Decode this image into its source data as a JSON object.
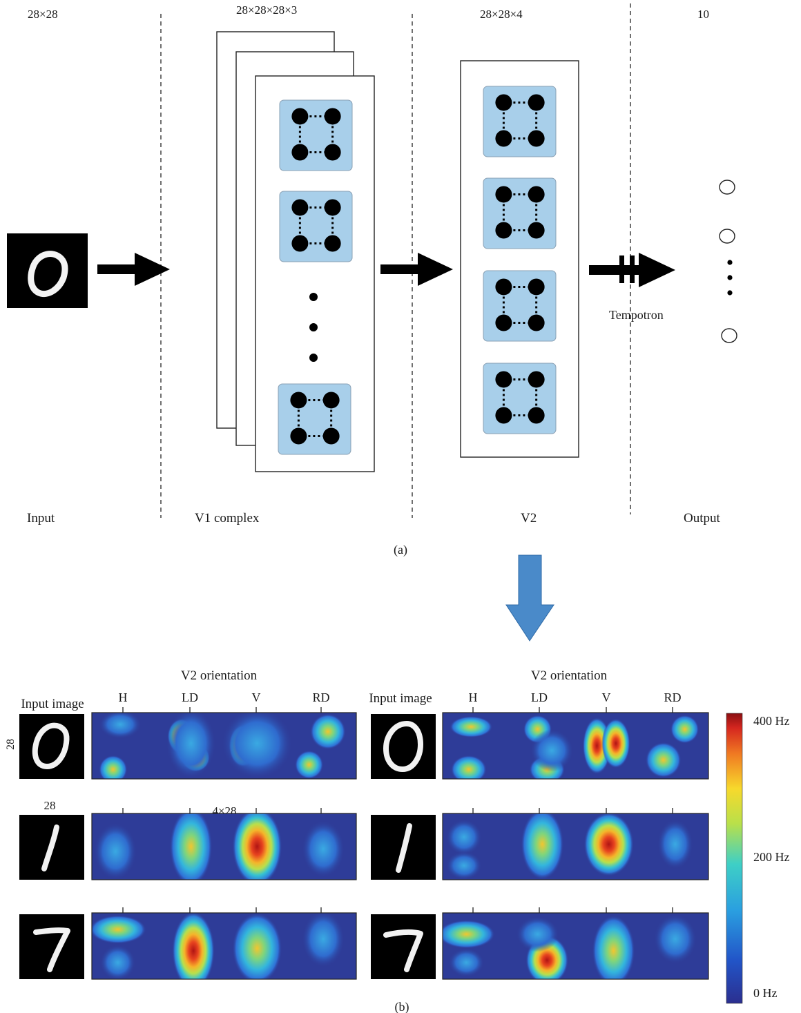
{
  "panel_a": {
    "dims": {
      "input": "28×28",
      "v1": "28×28×28×3",
      "v2": "28×28×4",
      "output": "10"
    },
    "stages": {
      "input": "Input",
      "v1": "V1 complex",
      "v2": "V2",
      "output": "Output"
    },
    "tempotron_label": "Tempotron",
    "caption": "(a)"
  },
  "panel_b": {
    "caption": "(b)",
    "left": {
      "input_label": "Input image",
      "orientation_title": "V2 orientation",
      "orientations": [
        "H",
        "LD",
        "V",
        "RD"
      ],
      "dim_height": "28",
      "dim_width": "28",
      "dim_map": "4×28"
    },
    "right": {
      "input_label": "Input image",
      "orientation_title": "V2 orientation",
      "orientations": [
        "H",
        "LD",
        "V",
        "RD"
      ]
    },
    "digits": [
      "0",
      "1",
      "7"
    ],
    "colorbar": {
      "max": "400 Hz",
      "mid": "200 Hz",
      "min": "0 Hz"
    }
  },
  "colors": {
    "filter_fill": "#a8cfea",
    "arrow_down": "#4a8ac9",
    "map_bg": "#2e3c98"
  }
}
